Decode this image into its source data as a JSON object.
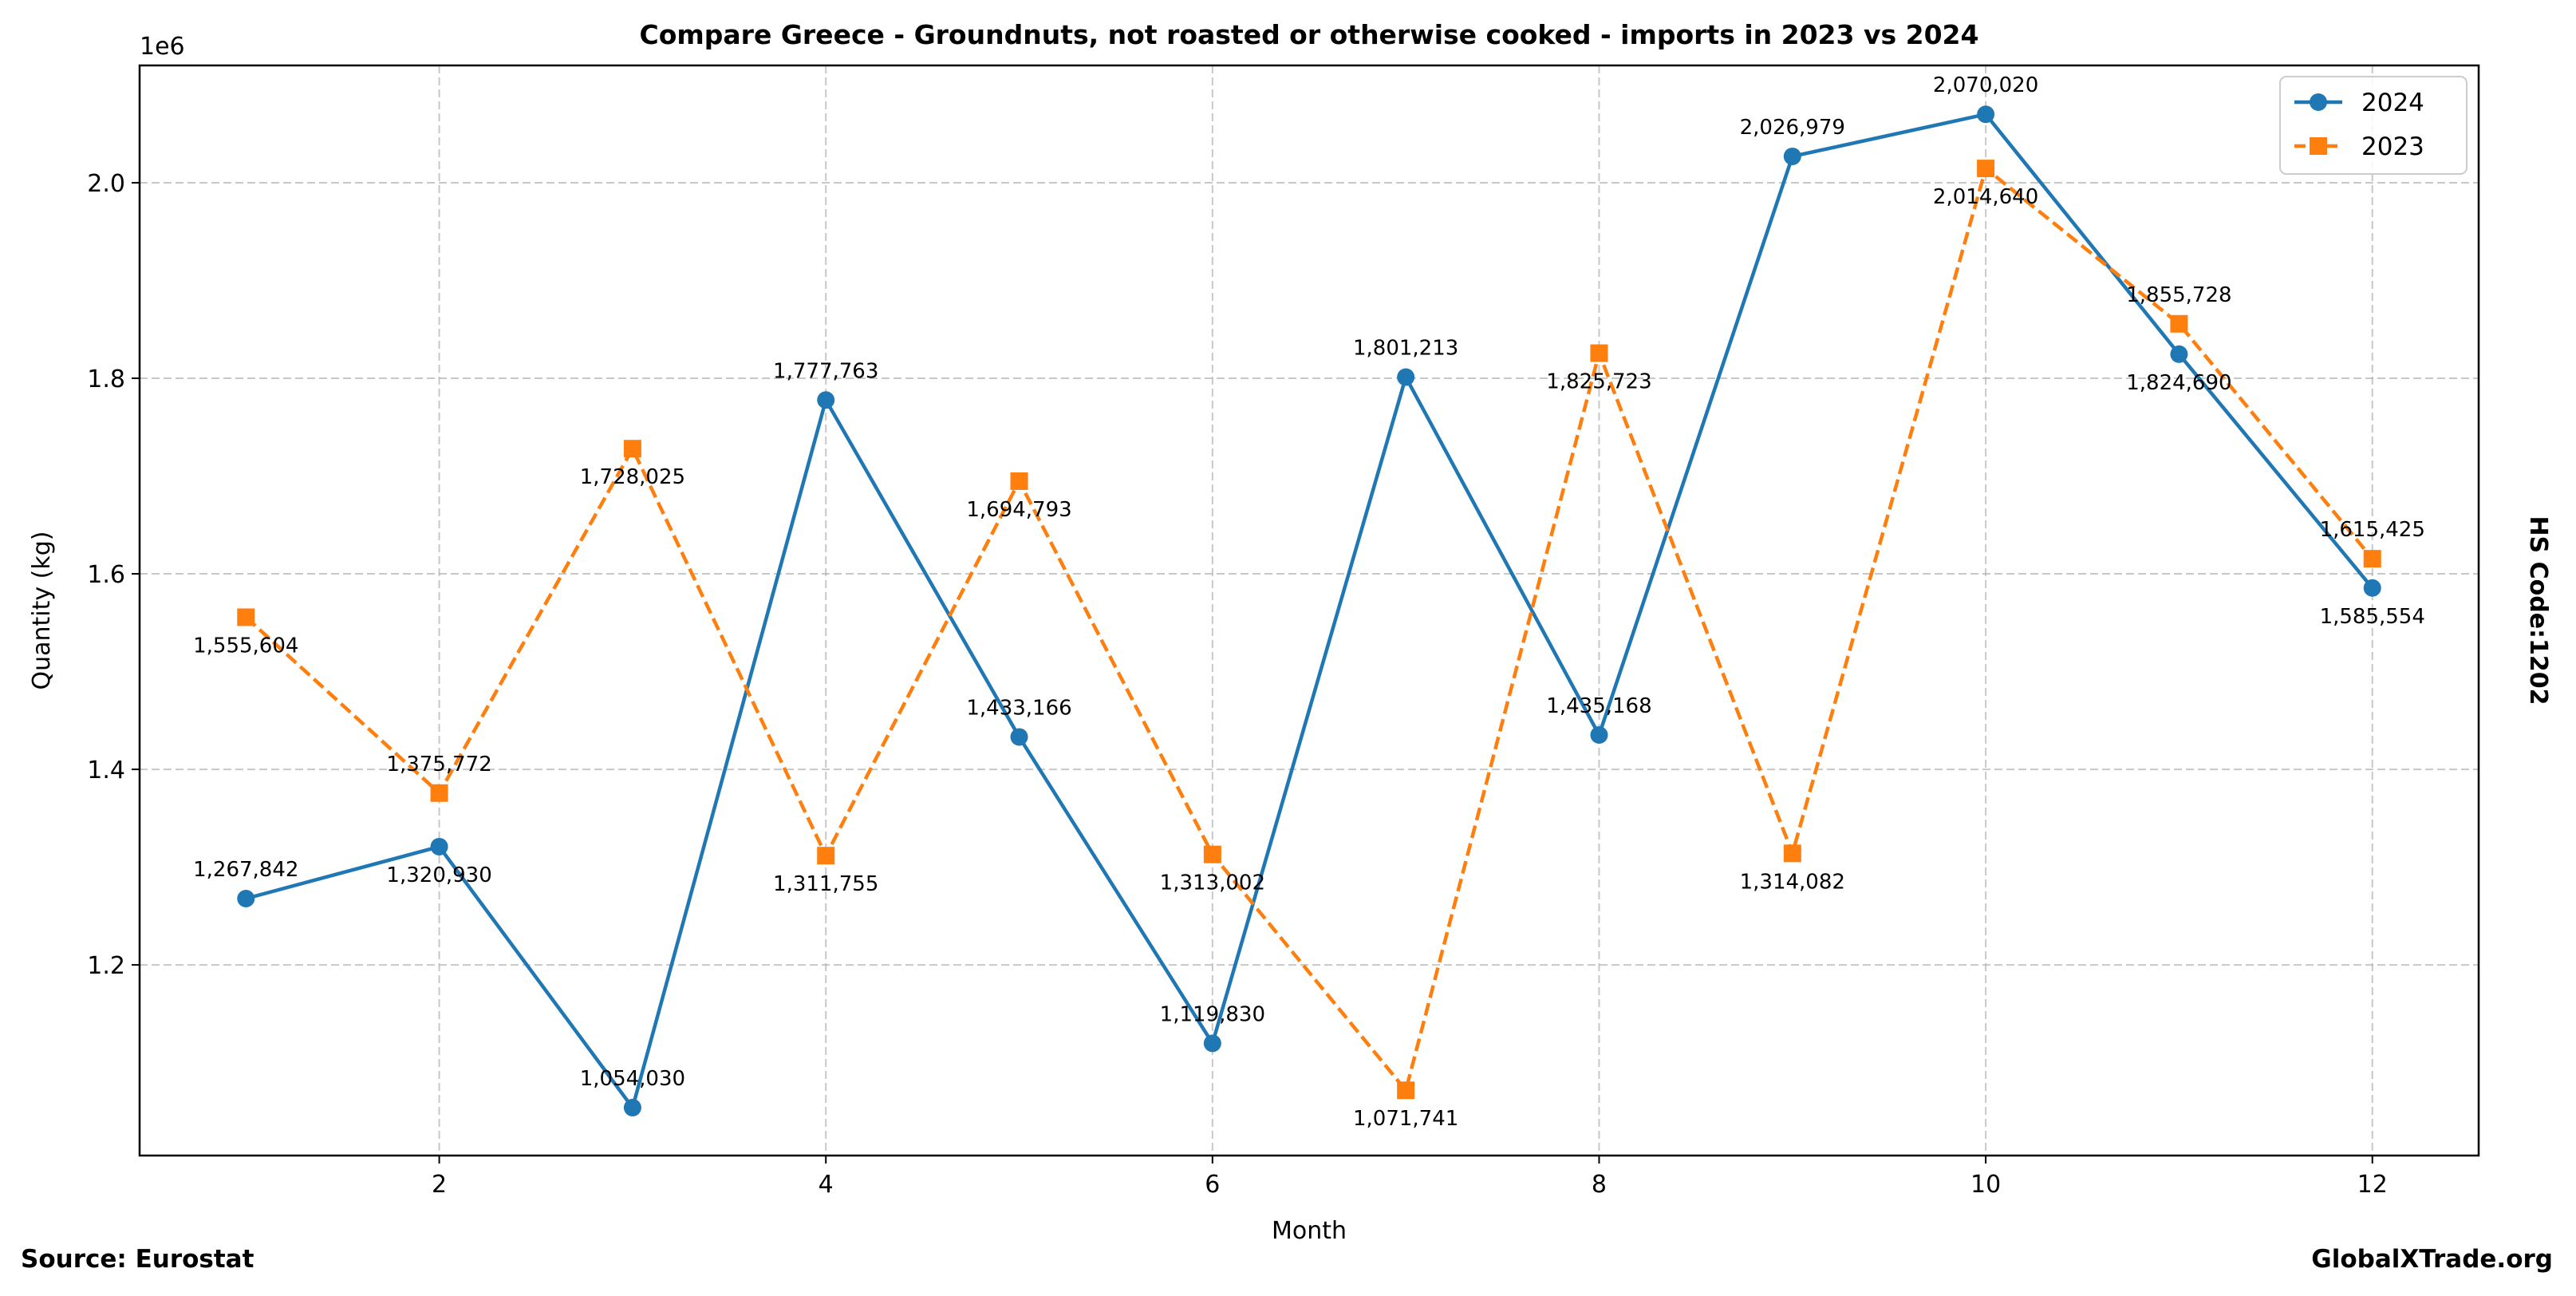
{
  "chart_data": {
    "type": "line",
    "title": "Compare Greece - Groundnuts, not roasted or otherwise cooked - imports in 2023 vs 2024",
    "xlabel": "Month",
    "ylabel": "Quantity (kg)",
    "y_offset_label": "1e6",
    "x": [
      1,
      2,
      3,
      4,
      5,
      6,
      7,
      8,
      9,
      10,
      11,
      12
    ],
    "xlim": [
      0.45,
      12.55
    ],
    "ylim": [
      1005000,
      2120000
    ],
    "xticks": [
      2,
      4,
      6,
      8,
      10,
      12
    ],
    "xtick_labels": [
      "2",
      "4",
      "6",
      "8",
      "10",
      "12"
    ],
    "yticks": [
      1200000,
      1400000,
      1600000,
      1800000,
      2000000
    ],
    "ytick_labels": [
      "1.2",
      "1.4",
      "1.6",
      "1.8",
      "2.0"
    ],
    "grid": true,
    "legend_position": "top-right",
    "series": [
      {
        "name": "2024",
        "color": "#1f77b4",
        "marker": "circle",
        "linestyle": "solid",
        "values": [
          1267842,
          1320930,
          1054030,
          1777763,
          1433166,
          1119830,
          1801213,
          1435168,
          2026979,
          2070020,
          1824690,
          1585554
        ],
        "labels": [
          "1,267,842",
          "1,320,930",
          "1,054,030",
          "1,777,763",
          "1,433,166",
          "1,119,830",
          "1,801,213",
          "1,435,168",
          "2,026,979",
          "2,070,020",
          "1,824,690",
          "1,585,554"
        ]
      },
      {
        "name": "2023",
        "color": "#ff7f0e",
        "marker": "square",
        "linestyle": "dashed",
        "values": [
          1555604,
          1375772,
          1728025,
          1311755,
          1694793,
          1313002,
          1071741,
          1825723,
          1314082,
          2014640,
          1855728,
          1615425
        ],
        "labels": [
          "1,555,604",
          "1,375,772",
          "1,728,025",
          "1,311,755",
          "1,694,793",
          "1,313,002",
          "1,071,741",
          "1,825,723",
          "1,314,082",
          "2,014,640",
          "1,855,728",
          "1,615,425"
        ]
      }
    ]
  },
  "side_label": "HS Code:1202",
  "source": "Source: Eurostat",
  "brand": "GlobalXTrade.org"
}
